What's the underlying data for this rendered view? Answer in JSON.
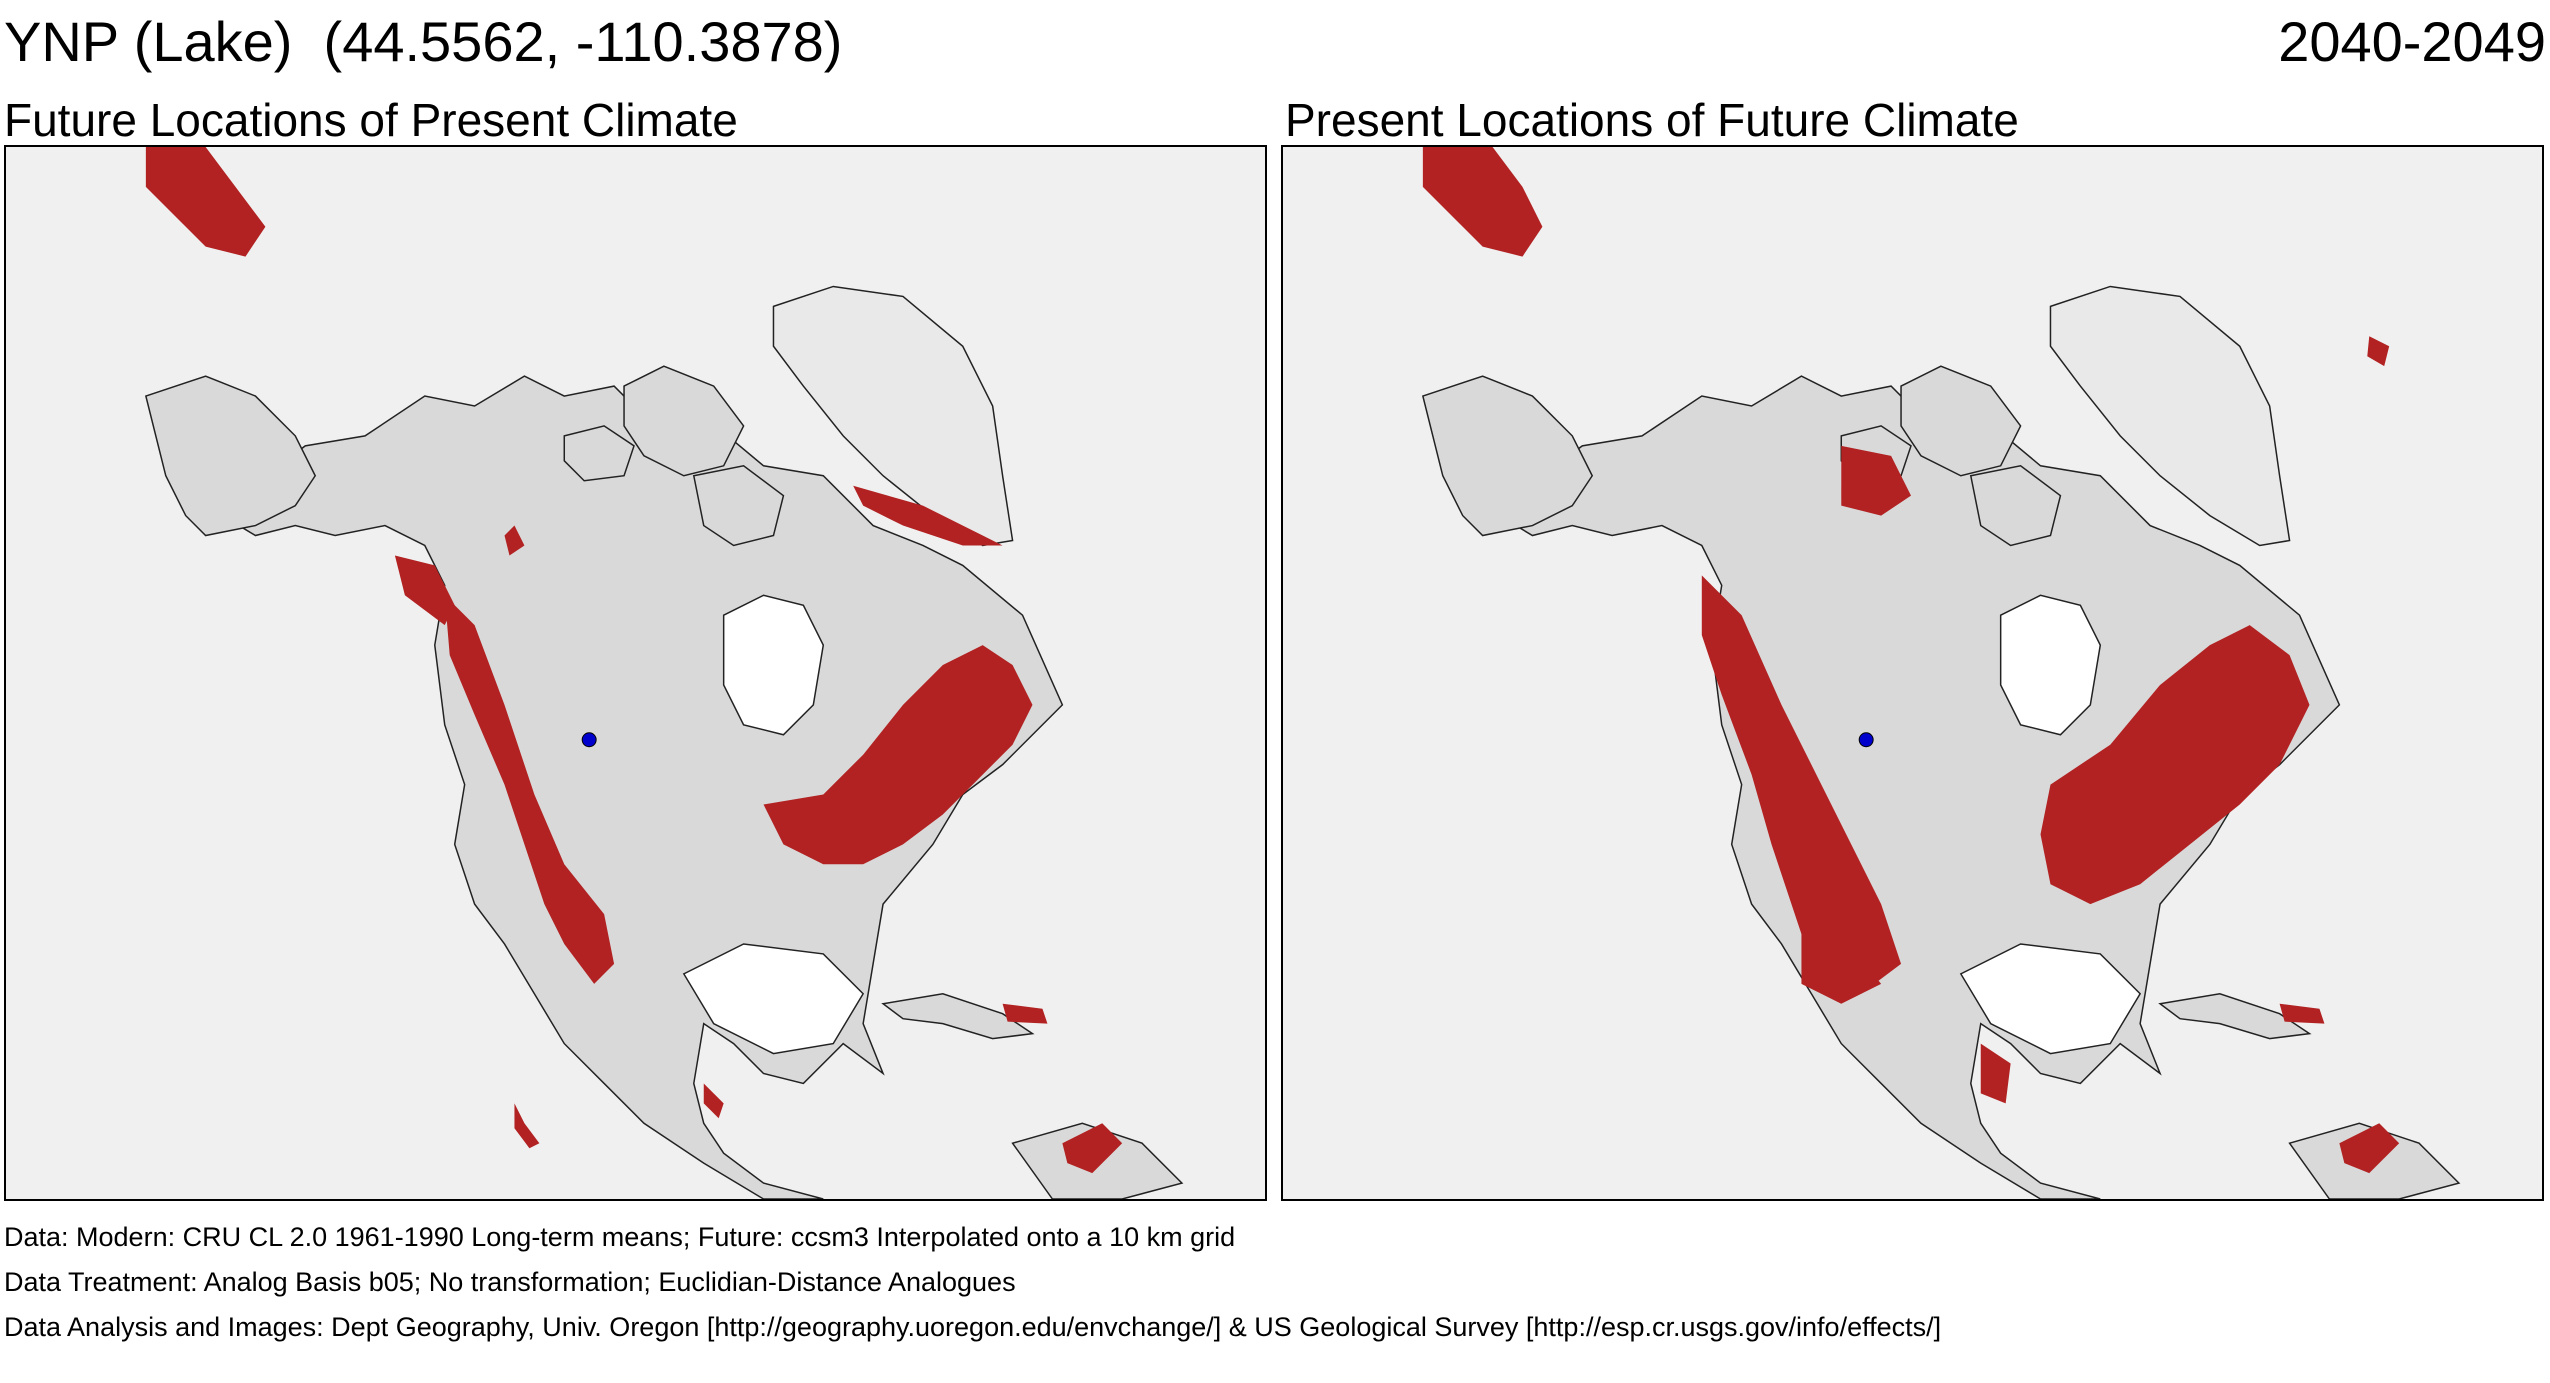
{
  "header": {
    "site_title": "YNP (Lake)  (44.5562, -110.3878)",
    "period": "2040-2049"
  },
  "panels": [
    {
      "title": "Future Locations of Present Climate"
    },
    {
      "title": "Present Locations of Future Climate"
    }
  ],
  "map_style": {
    "background": "#f0f0f0",
    "land": "#d9d9d9",
    "land_stroke": "#222222",
    "ice": "#e9e9e9",
    "analog_color": "#b22222",
    "site_marker_color": "#0000cc"
  },
  "footer": {
    "data": "Data:  Modern: CRU CL 2.0 1961-1990 Long-term means; Future: ccsm3 Interpolated onto a 10 km grid",
    "treatment": "Data Treatment:  Analog Basis b05; No transformation; Euclidian-Distance Analogues",
    "analysis": "Data Analysis and Images:  Dept Geography, Univ. Oregon [http://geography.uoregon.edu/envchange/] & US Geological Survey [http://esp.cr.usgs.gov/info/effects/]"
  }
}
